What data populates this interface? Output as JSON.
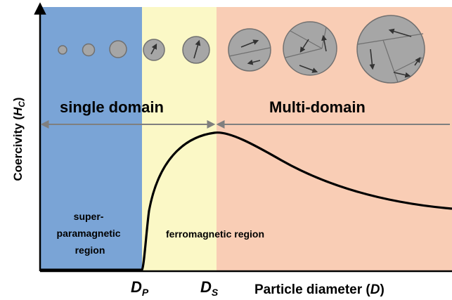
{
  "axes": {
    "y_label_main": "Coercivity (",
    "y_label_symbol": "H",
    "y_label_subscript": "C",
    "y_label_close": ")",
    "x_label_main": "Particle diameter (",
    "x_label_symbol": "D",
    "x_label_close": ")"
  },
  "markers": {
    "dp_letter": "D",
    "dp_subscript": "P",
    "ds_letter": "D",
    "ds_subscript": "S"
  },
  "regions": {
    "single_domain": "single domain",
    "multi_domain": "Multi-domain",
    "superparamagnetic_line1": "super-",
    "superparamagnetic_line2": "paramagnetic",
    "superparamagnetic_line3": "region",
    "ferromagnetic": "ferromagnetic region"
  },
  "colors": {
    "superparamagnetic_fill": "#7aa4d6",
    "single_domain_ferro_fill": "#fbf8c6",
    "multi_domain_fill": "#f9cdb5",
    "particle_fill": "#a6a6a6",
    "particle_stroke": "#707070",
    "curve": "#000000",
    "arrow_gray": "#7f7f7f"
  },
  "icons": {
    "particles": "magnetic-particle-icon",
    "moments": "magnetic-moment-arrow-icon"
  }
}
